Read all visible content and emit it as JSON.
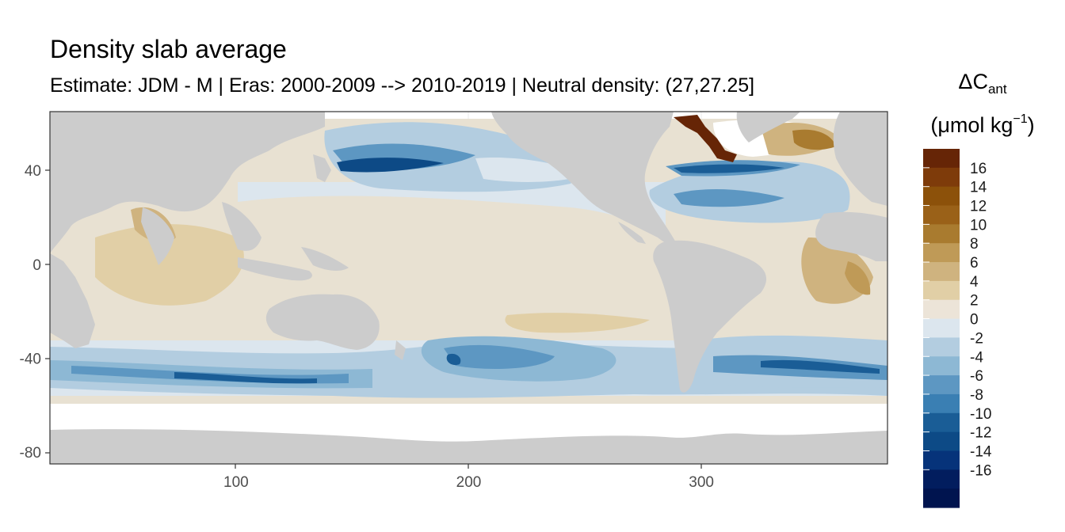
{
  "title": "Density slab average",
  "subtitle": "Estimate: JDM - M | Eras: 2000-2009 --> 2010-2019 | Neutral density: (27,27.25]",
  "legend": {
    "symbol": "ΔC",
    "subscript": "ant",
    "unit_open": "(μmol kg",
    "unit_sup": "−1",
    "unit_close": ")",
    "labels": [
      "16",
      "14",
      "12",
      "10",
      "8",
      "6",
      "4",
      "2",
      "0",
      "-2",
      "-4",
      "-6",
      "-8",
      "-10",
      "-12",
      "-14",
      "-16"
    ],
    "colors": [
      "#662506",
      "#7e3b0a",
      "#8c510a",
      "#9a6118",
      "#a97b2f",
      "#bf9a57",
      "#cfb37f",
      "#e1cfa6",
      "#ece4d8",
      "#dce6ee",
      "#b3cde0",
      "#8db8d4",
      "#5d97c2",
      "#3a7fb3",
      "#1a5d96",
      "#0d4a86",
      "#06337a",
      "#021d5e",
      "#00144f"
    ]
  },
  "chart_data": {
    "type": "heatmap",
    "title": "Density slab average",
    "subtitle": "Estimate: JDM - M | Eras: 2000-2009 --> 2010-2019 | Neutral density: (27,27.25]",
    "xlabel": "",
    "ylabel": "",
    "xlim": [
      20,
      380
    ],
    "ylim": [
      -85,
      65
    ],
    "x_ticks": [
      100,
      200,
      300
    ],
    "y_ticks": [
      40,
      0,
      -40,
      -80
    ],
    "variable": "ΔCant",
    "unit": "μmol kg−1",
    "color_range": [
      -18,
      18
    ],
    "color_step": 2,
    "land_color": "#cccccc",
    "no_data_color": "#ffffff",
    "grid": true,
    "legend_position": "right"
  }
}
